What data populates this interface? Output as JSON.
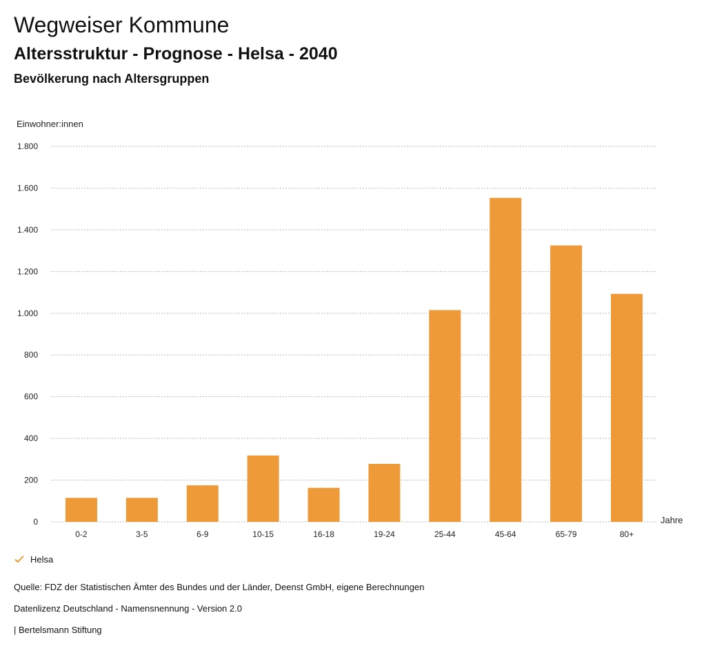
{
  "header": {
    "title": "Wegweiser Kommune",
    "subtitle": "Altersstruktur - Prognose - Helsa - 2040",
    "subsubtitle": "Bevölkerung nach Altersgruppen"
  },
  "legend": {
    "label": "Helsa",
    "color": "#ee9a38"
  },
  "footer": {
    "source": "Quelle: FDZ der Statistischen Ämter des Bundes und der Länder, Deenst GmbH, eigene Berechnungen",
    "license": "Datenlizenz Deutschland - Namensnennung - Version 2.0",
    "publisher": "| Bertelsmann Stiftung"
  },
  "chart_data": {
    "type": "bar",
    "categories": [
      "0-2",
      "3-5",
      "6-9",
      "10-15",
      "16-18",
      "19-24",
      "25-44",
      "45-64",
      "65-79",
      "80+"
    ],
    "series": [
      {
        "name": "Helsa",
        "values": [
          115,
          115,
          175,
          318,
          163,
          278,
          1015,
          1553,
          1325,
          1093
        ],
        "color": "#ee9a38"
      }
    ],
    "ylabel": "Einwohner:innen",
    "xlabel": "Jahre",
    "ylim": [
      0,
      1800
    ],
    "yticks": [
      0,
      200,
      400,
      600,
      800,
      1000,
      1200,
      1400,
      1600,
      1800
    ],
    "ytick_labels": [
      "0",
      "200",
      "400",
      "600",
      "800",
      "1.000",
      "1.200",
      "1.400",
      "1.600",
      "1.800"
    ],
    "grid": true,
    "legend_position": "bottom-left"
  }
}
